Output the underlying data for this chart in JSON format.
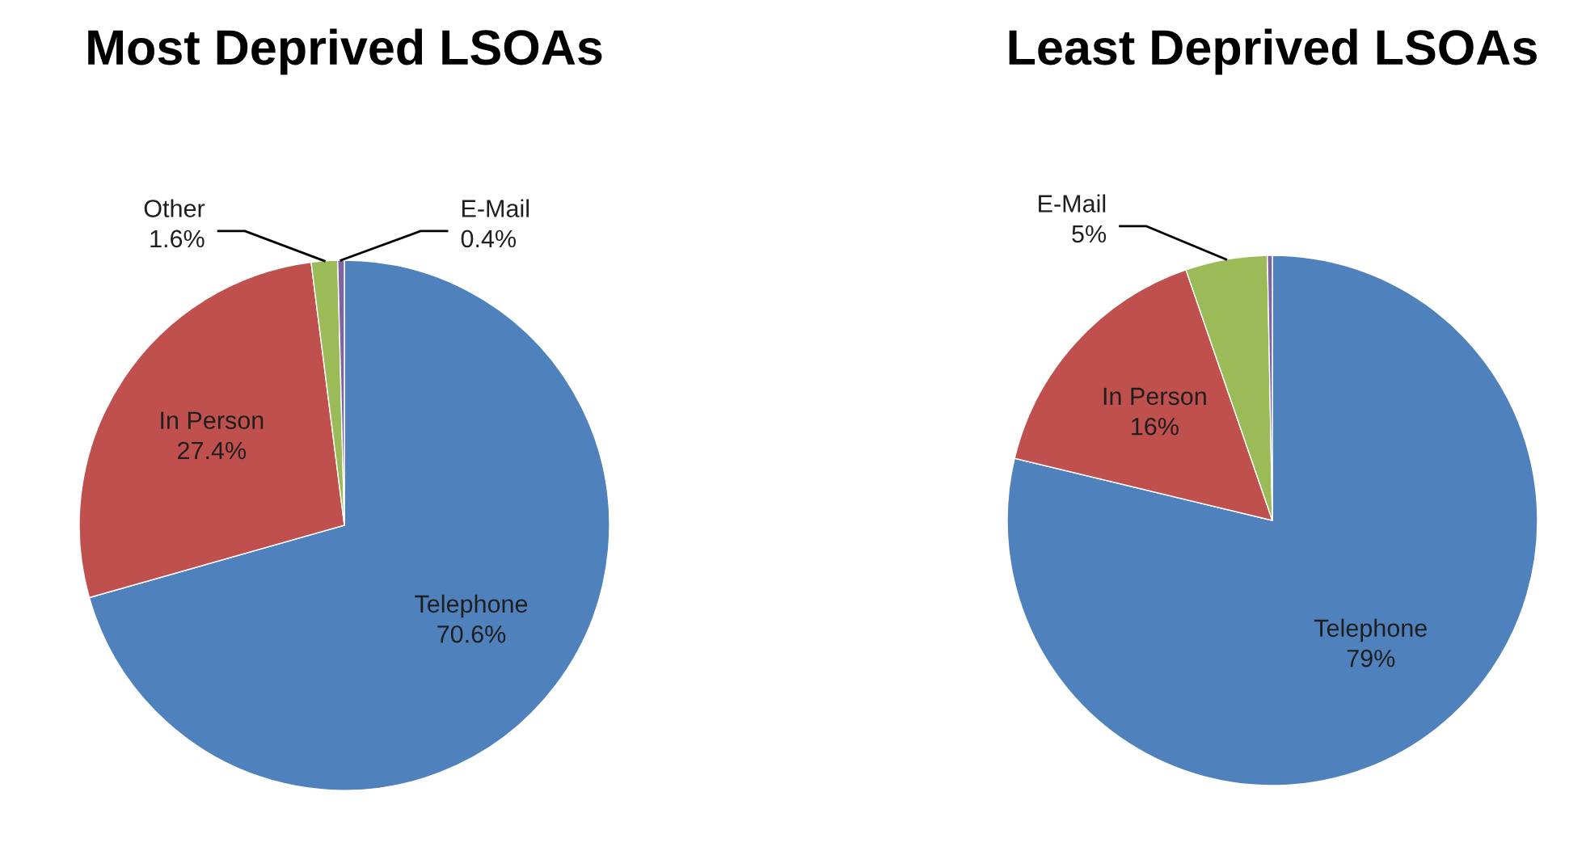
{
  "chart_data": [
    {
      "type": "pie",
      "title": "Most Deprived LSOAs",
      "categories": [
        "Telephone",
        "In Person",
        "Other",
        "E-Mail"
      ],
      "values": [
        70.6,
        27.4,
        1.6,
        0.4
      ],
      "value_labels": [
        "70.6%",
        "27.4%",
        "1.6%",
        "0.4%"
      ],
      "colors": [
        "#4f81bd",
        "#c0504d",
        "#9bbb59",
        "#8064a2"
      ],
      "legend": false
    },
    {
      "type": "pie",
      "title": "Least Deprived LSOAs",
      "categories": [
        "Telephone",
        "In Person",
        "E-Mail",
        null
      ],
      "values": [
        79,
        16,
        5,
        0.3
      ],
      "value_labels": [
        "79%",
        "16%",
        "5%",
        null
      ],
      "colors": [
        "#4f81bd",
        "#c0504d",
        "#9bbb59",
        "#8064a2"
      ],
      "legend": false
    }
  ]
}
